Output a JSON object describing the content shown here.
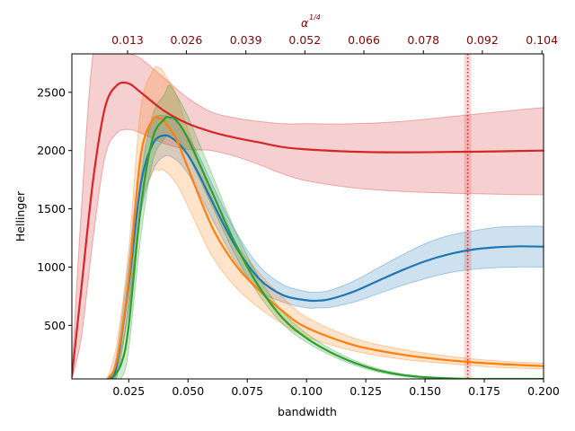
{
  "chart_data": {
    "type": "line",
    "xlabel": "bandwidth",
    "ylabel": "Hellinger",
    "top_xlabel": "α",
    "top_xlabel_exponent": "1/4",
    "xlim": [
      0.001,
      0.2
    ],
    "ylim": [
      40,
      2830
    ],
    "x_ticks": [
      {
        "value": 0.025,
        "label": "0.025"
      },
      {
        "value": 0.05,
        "label": "0.050"
      },
      {
        "value": 0.075,
        "label": "0.075"
      },
      {
        "value": 0.1,
        "label": "0.100"
      },
      {
        "value": 0.125,
        "label": "0.125"
      },
      {
        "value": 0.15,
        "label": "0.150"
      },
      {
        "value": 0.175,
        "label": "0.175"
      },
      {
        "value": 0.2,
        "label": "0.200"
      }
    ],
    "y_ticks": [
      {
        "value": 500,
        "label": "500"
      },
      {
        "value": 1000,
        "label": "1000"
      },
      {
        "value": 1500,
        "label": "1500"
      },
      {
        "value": 2000,
        "label": "2000"
      },
      {
        "value": 2500,
        "label": "2500"
      }
    ],
    "top_ticks": [
      {
        "value": 0.0245,
        "label": "0.013"
      },
      {
        "value": 0.0493,
        "label": "0.026"
      },
      {
        "value": 0.0744,
        "label": "0.039"
      },
      {
        "value": 0.0993,
        "label": "0.052"
      },
      {
        "value": 0.1242,
        "label": "0.066"
      },
      {
        "value": 0.1493,
        "label": "0.078"
      },
      {
        "value": 0.1742,
        "label": "0.092"
      },
      {
        "value": 0.1993,
        "label": "0.104"
      }
    ],
    "vline": {
      "x": 0.168,
      "color": "#d62728",
      "band": [
        0.1665,
        0.1695
      ]
    },
    "series": [
      {
        "color": "#d62728",
        "x": [
          0.001,
          0.005,
          0.01,
          0.015,
          0.02,
          0.025,
          0.03,
          0.04,
          0.05,
          0.06,
          0.07,
          0.08,
          0.09,
          0.1,
          0.12,
          0.14,
          0.16,
          0.18,
          0.2
        ],
        "y": [
          60,
          820,
          1750,
          2370,
          2560,
          2575,
          2500,
          2340,
          2230,
          2160,
          2110,
          2070,
          2030,
          2010,
          1990,
          1985,
          1988,
          1993,
          2000
        ],
        "lower": [
          40,
          400,
          1250,
          1950,
          2150,
          2180,
          2150,
          2060,
          2010,
          2000,
          1950,
          1880,
          1800,
          1740,
          1680,
          1650,
          1635,
          1625,
          1620
        ],
        "upper": [
          100,
          1500,
          2830,
          2830,
          2830,
          2830,
          2790,
          2620,
          2450,
          2330,
          2280,
          2250,
          2230,
          2230,
          2230,
          2250,
          2290,
          2330,
          2370
        ]
      },
      {
        "color": "#1f77b4",
        "x": [
          0.017,
          0.02,
          0.025,
          0.03,
          0.035,
          0.04,
          0.045,
          0.05,
          0.055,
          0.06,
          0.07,
          0.08,
          0.09,
          0.1,
          0.105,
          0.11,
          0.12,
          0.13,
          0.14,
          0.15,
          0.16,
          0.17,
          0.18,
          0.19,
          0.2
        ],
        "y": [
          40,
          160,
          850,
          1700,
          2050,
          2130,
          2080,
          1960,
          1780,
          1570,
          1180,
          900,
          760,
          715,
          712,
          725,
          790,
          880,
          970,
          1050,
          1110,
          1150,
          1170,
          1178,
          1175
        ],
        "lower": [
          40,
          60,
          650,
          1450,
          1820,
          1950,
          1920,
          1800,
          1620,
          1420,
          1050,
          800,
          700,
          650,
          650,
          655,
          700,
          770,
          840,
          900,
          950,
          980,
          995,
          1000,
          1000
        ],
        "upper": [
          40,
          260,
          1050,
          1950,
          2260,
          2300,
          2250,
          2120,
          1940,
          1720,
          1310,
          1010,
          850,
          790,
          785,
          800,
          880,
          990,
          1100,
          1200,
          1270,
          1310,
          1340,
          1350,
          1350
        ]
      },
      {
        "color": "#ff7f0e",
        "x": [
          0.016,
          0.02,
          0.025,
          0.03,
          0.035,
          0.038,
          0.04,
          0.045,
          0.05,
          0.06,
          0.07,
          0.08,
          0.09,
          0.1,
          0.12,
          0.14,
          0.16,
          0.18,
          0.2
        ],
        "y": [
          40,
          200,
          900,
          1950,
          2260,
          2275,
          2250,
          2100,
          1850,
          1350,
          1020,
          800,
          620,
          480,
          330,
          250,
          200,
          170,
          150
        ],
        "lower": [
          40,
          80,
          650,
          1500,
          1810,
          1830,
          1830,
          1720,
          1520,
          1100,
          830,
          650,
          510,
          400,
          280,
          210,
          170,
          140,
          125
        ],
        "upper": [
          40,
          350,
          1150,
          2350,
          2680,
          2710,
          2660,
          2480,
          2180,
          1600,
          1210,
          950,
          740,
          570,
          390,
          295,
          235,
          195,
          175
        ]
      },
      {
        "color": "#2ca02c",
        "x": [
          0.018,
          0.022,
          0.025,
          0.03,
          0.035,
          0.04,
          0.042,
          0.045,
          0.05,
          0.06,
          0.07,
          0.08,
          0.09,
          0.1,
          0.11,
          0.12,
          0.13,
          0.14,
          0.15,
          0.16,
          0.17,
          0.18,
          0.19,
          0.2
        ],
        "y": [
          40,
          180,
          500,
          1500,
          2100,
          2270,
          2285,
          2260,
          2100,
          1650,
          1200,
          830,
          560,
          390,
          270,
          180,
          115,
          75,
          55,
          45,
          40,
          40,
          40,
          40
        ],
        "lower": [
          40,
          50,
          300,
          1250,
          1900,
          2100,
          2130,
          2110,
          1960,
          1530,
          1100,
          760,
          510,
          355,
          245,
          160,
          100,
          65,
          45,
          40,
          40,
          40,
          40,
          40
        ],
        "upper": [
          40,
          320,
          700,
          1750,
          2300,
          2480,
          2560,
          2480,
          2290,
          1800,
          1310,
          910,
          615,
          430,
          300,
          200,
          130,
          85,
          60,
          50,
          40,
          40,
          40,
          40
        ]
      }
    ]
  }
}
